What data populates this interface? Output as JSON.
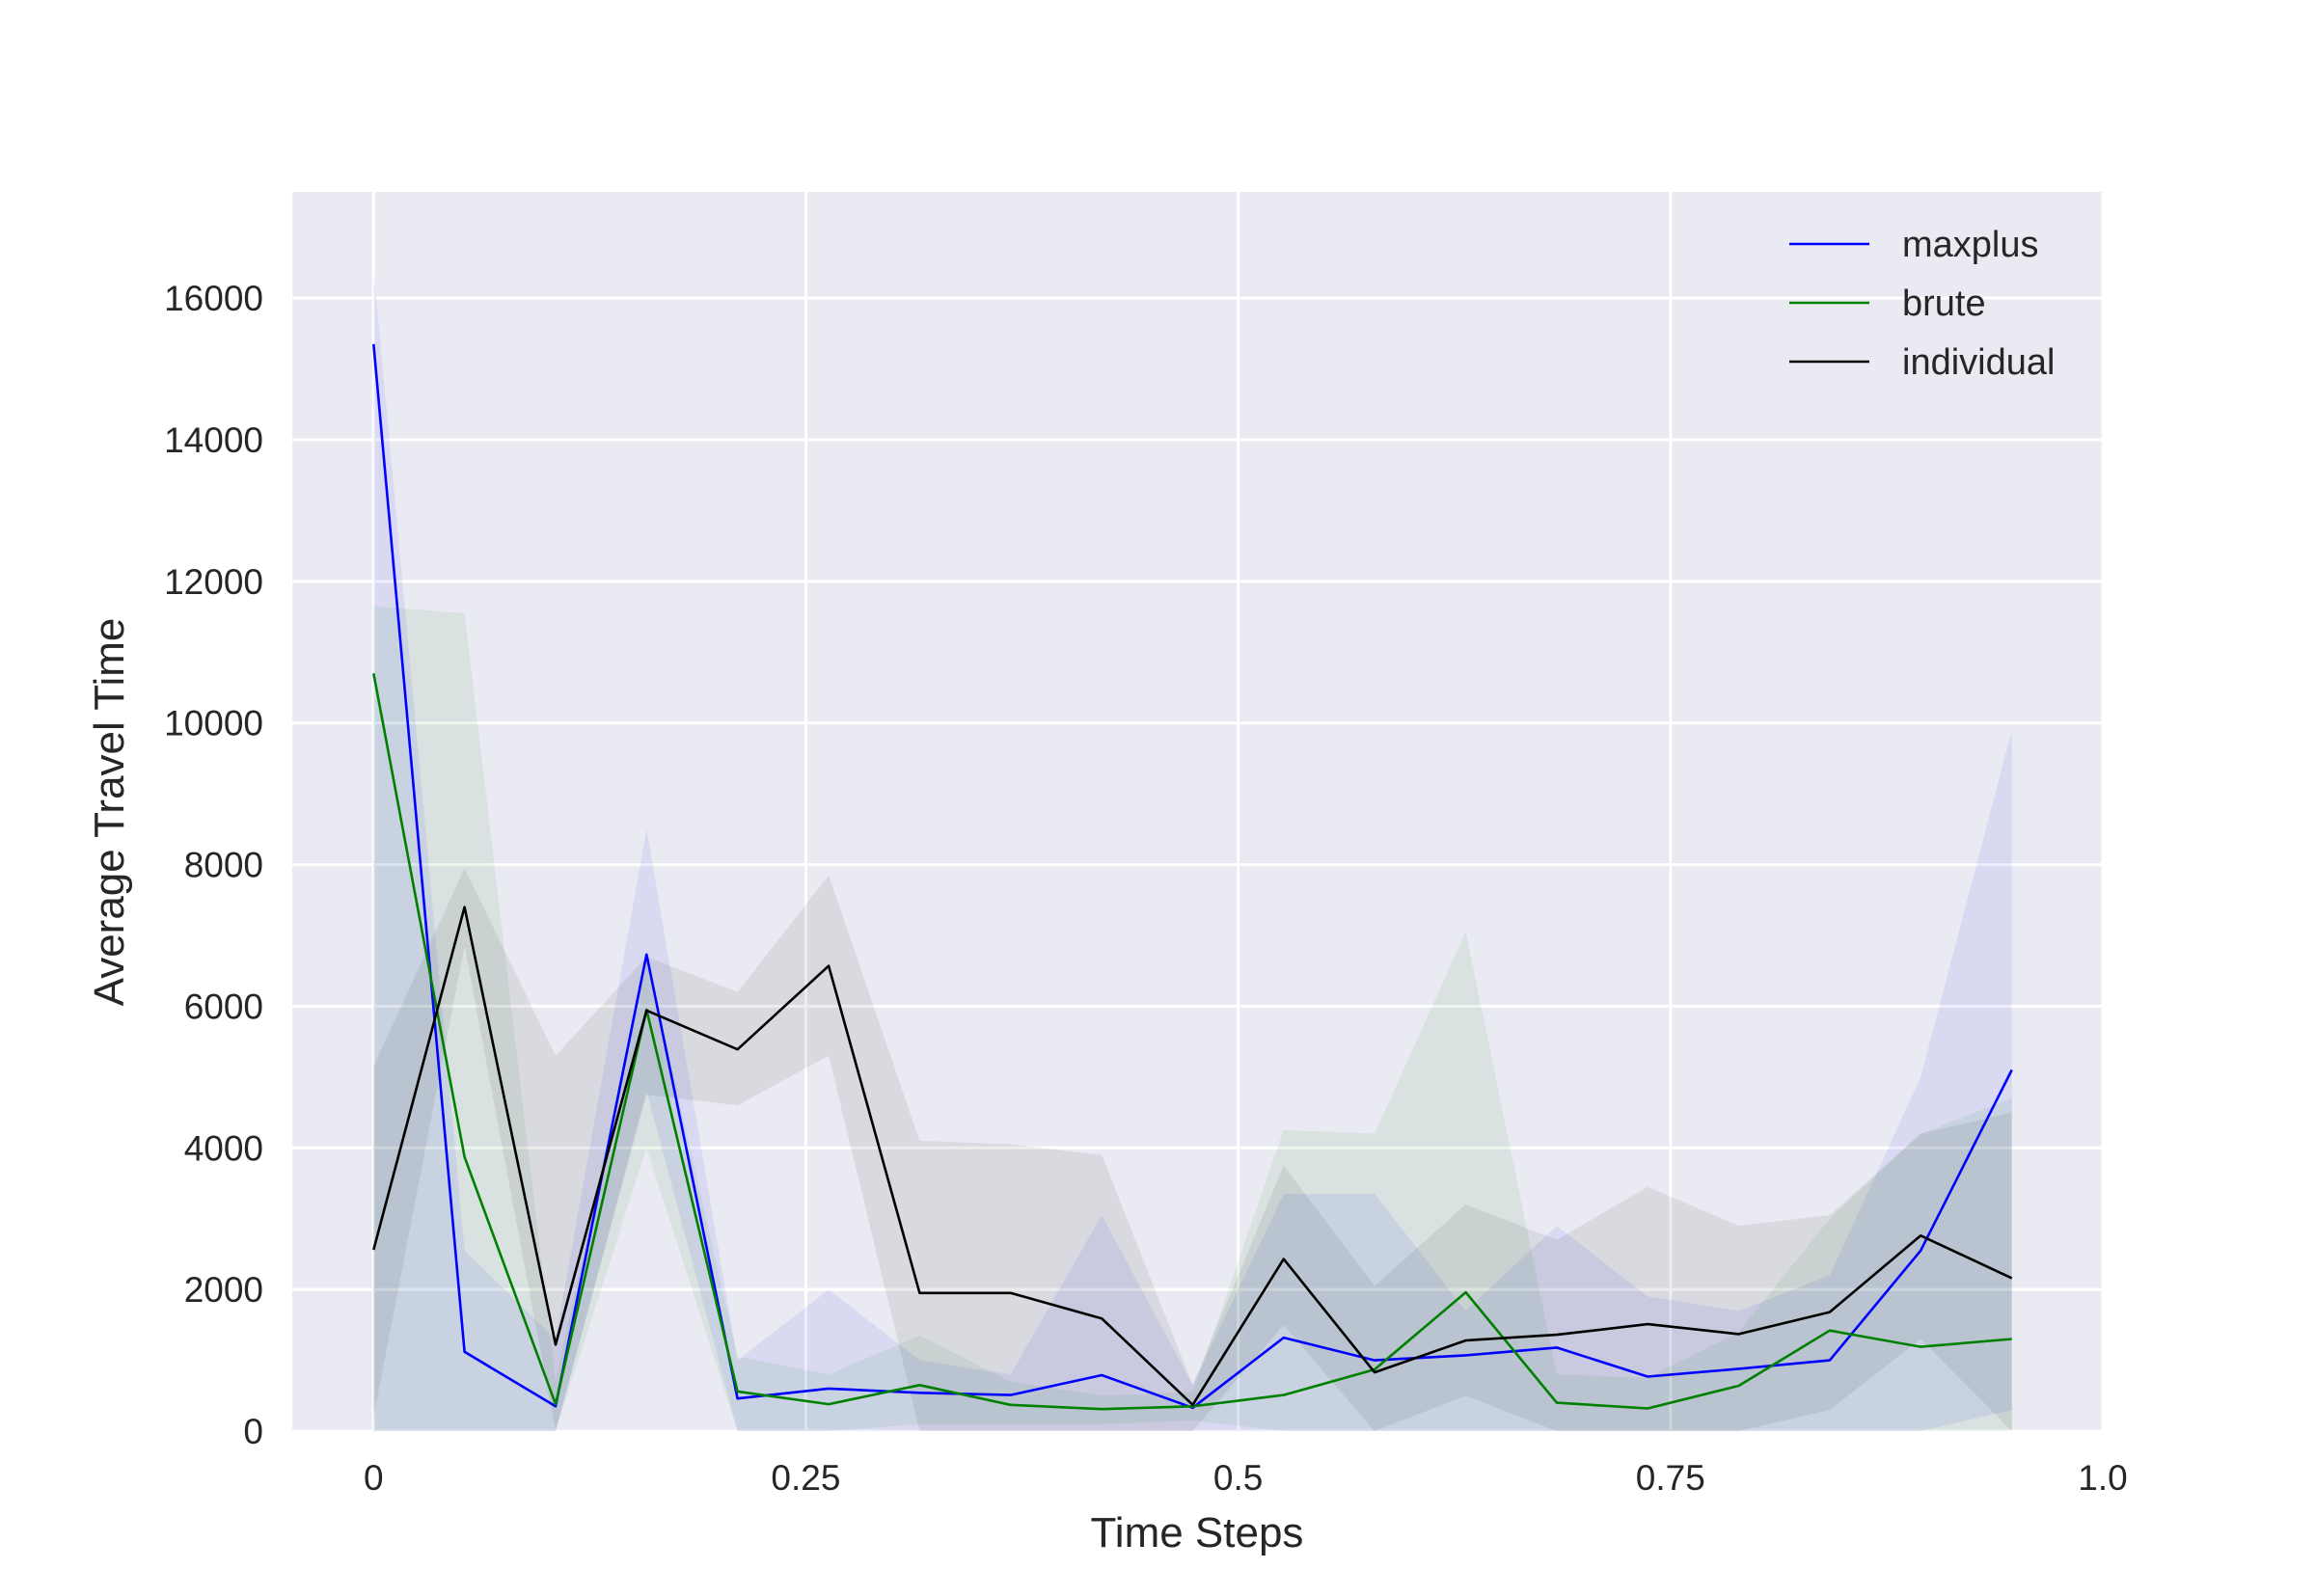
{
  "chart_data": {
    "type": "line",
    "title": "",
    "xlabel": "Time Steps",
    "ylabel": "Average Travel Time",
    "xlim": [
      -0.047,
      1.0
    ],
    "ylim": [
      0,
      17500
    ],
    "grid": true,
    "legend_position": "top-right",
    "x_ticks": [
      0,
      0.25,
      0.5,
      0.75,
      1.0
    ],
    "x_tick_labels": [
      "0",
      "0.25",
      "0.5",
      "0.75",
      "1.0"
    ],
    "y_ticks": [
      0,
      2000,
      4000,
      6000,
      8000,
      10000,
      12000,
      14000,
      16000
    ],
    "y_tick_labels": [
      "0",
      "2000",
      "4000",
      "6000",
      "8000",
      "10000",
      "12000",
      "14000",
      "16000"
    ],
    "x": [
      0,
      0.0526,
      0.1053,
      0.1579,
      0.2105,
      0.2632,
      0.3158,
      0.3684,
      0.4211,
      0.4737,
      0.5263,
      0.5789,
      0.6316,
      0.6842,
      0.7368,
      0.7895,
      0.8421,
      0.8947,
      0.9474
    ],
    "series": [
      {
        "name": "maxplus",
        "color": "#0000ff",
        "values": [
          15350,
          1120,
          350,
          6730,
          460,
          600,
          540,
          510,
          790,
          330,
          1320,
          1000,
          1070,
          1180,
          770,
          880,
          1000,
          2550,
          5100
        ],
        "lower": [
          0,
          0,
          0,
          4800,
          0,
          0,
          0,
          0,
          0,
          0,
          0,
          0,
          0,
          0,
          0,
          0,
          0,
          0,
          300
        ],
        "upper": [
          16400,
          2550,
          1300,
          8500,
          1000,
          2000,
          1000,
          800,
          3050,
          650,
          3350,
          3350,
          1700,
          2900,
          1900,
          1700,
          2200,
          5000,
          9900
        ]
      },
      {
        "name": "brute",
        "color": "#008000",
        "values": [
          10700,
          3870,
          380,
          5950,
          560,
          380,
          650,
          370,
          310,
          350,
          510,
          870,
          1960,
          400,
          320,
          640,
          1420,
          1190,
          1300
        ],
        "lower": [
          0,
          0,
          0,
          4000,
          0,
          0,
          100,
          100,
          100,
          150,
          0,
          0,
          0,
          0,
          0,
          0,
          0,
          0,
          0
        ],
        "upper": [
          11650,
          11550,
          700,
          6700,
          1050,
          800,
          1350,
          700,
          500,
          550,
          4250,
          4200,
          7050,
          800,
          750,
          1400,
          3000,
          4200,
          4700
        ]
      },
      {
        "name": "individual",
        "color": "#000000",
        "values": [
          2560,
          7400,
          1220,
          5940,
          5390,
          6570,
          1950,
          1950,
          1590,
          370,
          2430,
          830,
          1280,
          1360,
          1510,
          1370,
          1680,
          2760,
          2160
        ],
        "lower": [
          200,
          6850,
          0,
          4750,
          4600,
          5300,
          0,
          0,
          0,
          0,
          1500,
          0,
          500,
          0,
          0,
          0,
          300,
          1300,
          0
        ],
        "upper": [
          5150,
          7950,
          5300,
          6700,
          6200,
          7850,
          4100,
          4050,
          3900,
          650,
          3750,
          2050,
          3200,
          2700,
          3450,
          2900,
          3050,
          4200,
          4500
        ]
      }
    ]
  }
}
